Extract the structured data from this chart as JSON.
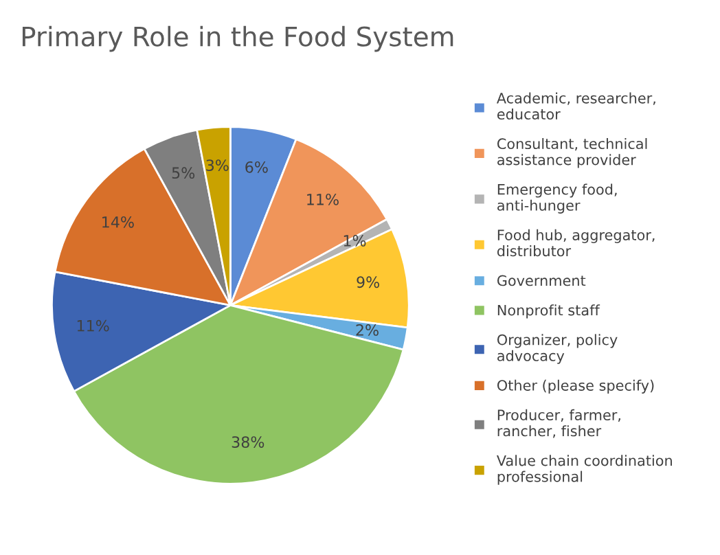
{
  "chart_data": {
    "type": "pie",
    "title": "Primary Role in the Food System",
    "categories": [
      "Academic, researcher, educator",
      "Consultant, technical assistance provider",
      "Emergency food, anti-hunger",
      "Food hub, aggregator, distributor",
      "Government",
      "Nonprofit staff",
      "Organizer, policy advocacy",
      "Other (please specify)",
      "Producer, farmer, rancher, fisher",
      "Value chain coordination professional"
    ],
    "values": [
      6,
      11,
      1,
      9,
      2,
      38,
      11,
      14,
      5,
      3
    ],
    "value_labels": [
      "6%",
      "11%",
      "1%",
      "9%",
      "2%",
      "38%",
      "11%",
      "14%",
      "5%",
      "3%"
    ],
    "colors": [
      "#5b8bd5",
      "#f0955a",
      "#b4b4b4",
      "#ffc832",
      "#68aee0",
      "#8fc462",
      "#3d64b2",
      "#d8702a",
      "#7f7f7f",
      "#c9a200"
    ],
    "legend": "right"
  }
}
